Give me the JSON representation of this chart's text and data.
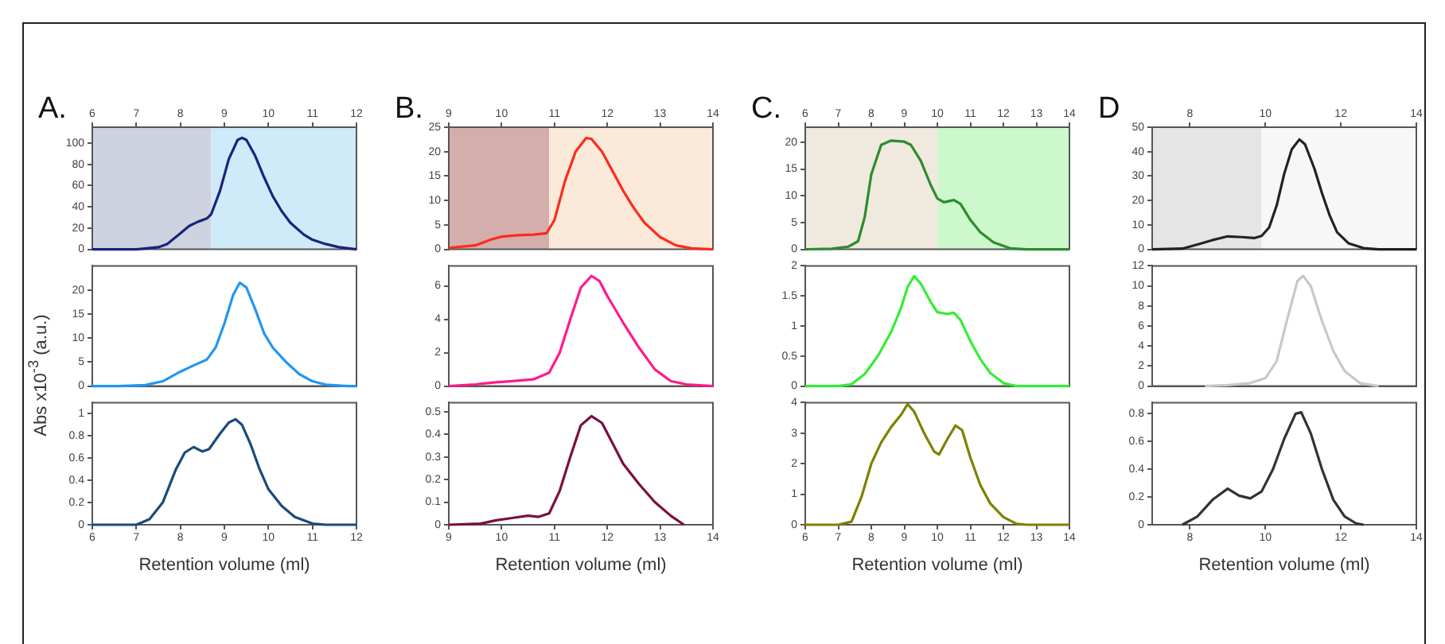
{
  "chart_data": [
    {
      "type": "line",
      "title": "A.",
      "xlim": [
        6,
        12
      ],
      "xticks": [
        6,
        7,
        8,
        9,
        10,
        11,
        12
      ],
      "ylim": [
        0,
        115
      ],
      "yticks": [
        0,
        20,
        40,
        60,
        80,
        100
      ],
      "bands": [
        {
          "axis": "x",
          "from": 6,
          "to": 8.7,
          "color": "#cdd3df"
        },
        {
          "axis": "x",
          "from": 8.7,
          "to": 12,
          "color": "#cfeaf8"
        }
      ],
      "series": [
        {
          "color": "#1a237e",
          "x": [
            6,
            7,
            7.5,
            7.7,
            8,
            8.2,
            8.4,
            8.6,
            8.7,
            8.9,
            9.1,
            9.3,
            9.4,
            9.5,
            9.7,
            9.9,
            10.1,
            10.3,
            10.5,
            10.8,
            11,
            11.3,
            11.6,
            12
          ],
          "values": [
            0,
            0,
            2,
            5,
            15,
            22,
            26,
            29,
            33,
            55,
            85,
            103,
            105,
            103,
            88,
            68,
            50,
            36,
            25,
            14,
            9,
            5,
            2,
            0
          ]
        }
      ]
    },
    {
      "type": "line",
      "ylabel": "Abs x10$^{-3}$ (a.u.)",
      "xlim": [
        6,
        12
      ],
      "ylim": [
        0,
        25
      ],
      "yticks": [
        0,
        5,
        10,
        15,
        20
      ],
      "tick_labels": "y",
      "series": [
        {
          "color": "#2196f3",
          "x": [
            6,
            6.6,
            7.2,
            7.6,
            8,
            8.3,
            8.6,
            8.8,
            9,
            9.2,
            9.35,
            9.5,
            9.7,
            9.9,
            10.1,
            10.4,
            10.7,
            11,
            11.3,
            11.8,
            12
          ],
          "values": [
            0,
            0,
            0.2,
            1,
            3,
            4.3,
            5.5,
            8,
            13,
            19,
            21.5,
            20.5,
            16,
            11,
            8,
            5,
            2.5,
            1,
            0.3,
            0,
            0
          ]
        }
      ]
    },
    {
      "type": "line",
      "xlabel": "Retention volume (ml)",
      "xlim": [
        6,
        12
      ],
      "xticks": [
        6,
        7,
        8,
        9,
        10,
        11,
        12
      ],
      "ylim": [
        0,
        1.1
      ],
      "yticks": [
        0,
        0.2,
        0.4,
        0.6,
        0.8,
        1
      ],
      "series": [
        {
          "color": "#1a4a7a",
          "x": [
            6,
            7,
            7.3,
            7.6,
            7.9,
            8.1,
            8.3,
            8.5,
            8.65,
            8.9,
            9.1,
            9.25,
            9.4,
            9.6,
            9.8,
            10,
            10.3,
            10.6,
            11,
            11.3,
            12
          ],
          "values": [
            0,
            0,
            0.05,
            0.2,
            0.5,
            0.65,
            0.7,
            0.66,
            0.68,
            0.82,
            0.92,
            0.95,
            0.9,
            0.72,
            0.5,
            0.32,
            0.17,
            0.07,
            0.01,
            0,
            0
          ]
        }
      ]
    },
    {
      "type": "line",
      "title": "B.",
      "xlim": [
        9,
        14
      ],
      "xticks": [
        9,
        10,
        11,
        12,
        13,
        14
      ],
      "ylim": [
        0,
        25
      ],
      "yticks": [
        0,
        5,
        10,
        15,
        20,
        25
      ],
      "bands": [
        {
          "axis": "x",
          "from": 9,
          "to": 10.9,
          "color": "#d4aeab"
        },
        {
          "axis": "x",
          "from": 10.9,
          "to": 14,
          "color": "#fbe9da"
        }
      ],
      "series": [
        {
          "color": "#ff2a1a",
          "x": [
            9,
            9.5,
            9.8,
            10,
            10.3,
            10.6,
            10.85,
            11,
            11.2,
            11.4,
            11.6,
            11.7,
            11.9,
            12.1,
            12.3,
            12.5,
            12.7,
            13,
            13.3,
            13.6,
            14
          ],
          "values": [
            0.3,
            0.8,
            2,
            2.6,
            2.9,
            3,
            3.3,
            6,
            14,
            20,
            22.8,
            22.6,
            20,
            16,
            12,
            8.5,
            5.5,
            2.5,
            0.8,
            0.2,
            0
          ]
        }
      ]
    },
    {
      "type": "line",
      "xlim": [
        9,
        14
      ],
      "ylim": [
        0,
        7.2
      ],
      "yticks": [
        0,
        2,
        4,
        6
      ],
      "tick_labels": "y",
      "series": [
        {
          "color": "#ff1a8c",
          "x": [
            9,
            9.5,
            9.8,
            10.2,
            10.6,
            10.9,
            11.1,
            11.3,
            11.5,
            11.7,
            11.85,
            12,
            12.3,
            12.6,
            12.9,
            13.2,
            13.5,
            14
          ],
          "values": [
            0,
            0.1,
            0.2,
            0.3,
            0.4,
            0.8,
            2,
            4,
            5.9,
            6.6,
            6.3,
            5.4,
            3.8,
            2.3,
            1,
            0.3,
            0.1,
            0
          ]
        }
      ]
    },
    {
      "type": "line",
      "xlabel": "Retention volume (ml)",
      "xlim": [
        9,
        14
      ],
      "xticks": [
        9,
        10,
        11,
        12,
        13,
        14
      ],
      "ylim": [
        0,
        0.54
      ],
      "yticks": [
        0,
        0.1,
        0.2,
        0.3,
        0.4,
        0.5
      ],
      "series": [
        {
          "color": "#7a1040",
          "x": [
            9,
            9.6,
            9.9,
            10.2,
            10.5,
            10.7,
            10.9,
            11.1,
            11.3,
            11.5,
            11.7,
            11.9,
            12.1,
            12.3,
            12.6,
            12.9,
            13.2,
            13.45
          ],
          "values": [
            0,
            0.005,
            0.02,
            0.03,
            0.04,
            0.035,
            0.05,
            0.15,
            0.3,
            0.44,
            0.48,
            0.45,
            0.36,
            0.27,
            0.18,
            0.1,
            0.04,
            0
          ]
        }
      ]
    },
    {
      "type": "line",
      "title": "C.",
      "xlim": [
        6,
        14
      ],
      "xticks": [
        6,
        7,
        8,
        9,
        10,
        11,
        12,
        13,
        14
      ],
      "ylim": [
        0,
        22.8
      ],
      "yticks": [
        0,
        5,
        10,
        15,
        20
      ],
      "bands": [
        {
          "axis": "x",
          "from": 6,
          "to": 10,
          "color": "#efe9de"
        },
        {
          "axis": "x",
          "from": 10,
          "to": 14,
          "color": "#ccf8cc"
        }
      ],
      "series": [
        {
          "color": "#2e8b2e",
          "x": [
            6,
            6.8,
            7.3,
            7.6,
            7.8,
            8,
            8.3,
            8.6,
            9,
            9.2,
            9.5,
            9.8,
            10,
            10.2,
            10.5,
            10.7,
            11,
            11.3,
            11.7,
            12.2,
            12.7,
            14
          ],
          "values": [
            0,
            0.1,
            0.5,
            1.5,
            6,
            14,
            19.5,
            20.3,
            20.1,
            19.5,
            16.5,
            12,
            9.5,
            8.8,
            9.2,
            8.5,
            5.5,
            3.2,
            1.3,
            0.2,
            0,
            0
          ]
        }
      ]
    },
    {
      "type": "line",
      "xlim": [
        6,
        14
      ],
      "ylim": [
        0,
        2
      ],
      "yticks": [
        0,
        0.5,
        1,
        1.5,
        2
      ],
      "tick_labels": "y",
      "series": [
        {
          "color": "#33ee33",
          "x": [
            6,
            7,
            7.4,
            7.8,
            8.2,
            8.6,
            8.9,
            9.1,
            9.3,
            9.5,
            9.8,
            10,
            10.3,
            10.5,
            10.7,
            11,
            11.3,
            11.6,
            12,
            12.4,
            14
          ],
          "values": [
            0,
            0,
            0.03,
            0.2,
            0.5,
            0.9,
            1.3,
            1.65,
            1.83,
            1.7,
            1.4,
            1.23,
            1.2,
            1.22,
            1.1,
            0.75,
            0.45,
            0.22,
            0.05,
            0,
            0
          ]
        }
      ]
    },
    {
      "type": "line",
      "xlabel": "Retention volume (ml)",
      "xlim": [
        6,
        14
      ],
      "xticks": [
        6,
        7,
        8,
        9,
        10,
        11,
        12,
        13,
        14
      ],
      "ylim": [
        0,
        4
      ],
      "yticks": [
        0,
        1,
        2,
        3,
        4
      ],
      "series": [
        {
          "color": "#808000",
          "x": [
            6,
            7,
            7.4,
            7.7,
            8,
            8.3,
            8.6,
            8.9,
            9.1,
            9.3,
            9.6,
            9.9,
            10.05,
            10.3,
            10.55,
            10.75,
            11,
            11.3,
            11.6,
            12,
            12.4,
            12.7,
            14
          ],
          "values": [
            0,
            0,
            0.1,
            0.9,
            2,
            2.7,
            3.2,
            3.6,
            3.95,
            3.7,
            3,
            2.4,
            2.3,
            2.8,
            3.25,
            3.1,
            2.2,
            1.3,
            0.7,
            0.25,
            0.03,
            0,
            0
          ]
        }
      ]
    },
    {
      "type": "line",
      "title": "D",
      "xlim": [
        7,
        14
      ],
      "xticks": [
        8,
        10,
        12,
        14
      ],
      "ylim": [
        0,
        50
      ],
      "yticks": [
        0,
        10,
        20,
        30,
        40,
        50
      ],
      "bands": [
        {
          "axis": "x",
          "from": 7,
          "to": 9.9,
          "color": "#e5e5e5"
        },
        {
          "axis": "x",
          "from": 9.9,
          "to": 14,
          "color": "#f7f7f7"
        }
      ],
      "series": [
        {
          "color": "#222222",
          "x": [
            7,
            7.8,
            8.2,
            8.6,
            9,
            9.4,
            9.7,
            9.9,
            10.1,
            10.3,
            10.5,
            10.7,
            10.9,
            11.05,
            11.3,
            11.5,
            11.7,
            11.9,
            12.2,
            12.6,
            13,
            14
          ],
          "values": [
            0,
            0.3,
            2,
            3.8,
            5.3,
            5,
            4.6,
            5.5,
            9,
            18,
            31,
            41,
            45,
            43,
            33,
            23,
            14,
            7,
            2.5,
            0.5,
            0,
            0
          ]
        }
      ]
    },
    {
      "type": "line",
      "xlim": [
        7,
        14
      ],
      "ylim": [
        0,
        12
      ],
      "yticks": [
        0,
        2,
        4,
        6,
        8,
        10,
        12
      ],
      "tick_labels": "y",
      "series": [
        {
          "color": "#c8c8c8",
          "x": [
            8.4,
            9,
            9.6,
            10,
            10.3,
            10.6,
            10.85,
            11,
            11.2,
            11.5,
            11.8,
            12.1,
            12.5,
            13
          ],
          "values": [
            0,
            0.1,
            0.3,
            0.8,
            2.5,
            7,
            10.5,
            11,
            10,
            6.5,
            3.5,
            1.5,
            0.3,
            0
          ]
        }
      ]
    },
    {
      "type": "line",
      "xlabel": "Retention volume (ml)",
      "xlim": [
        7,
        14
      ],
      "xticks": [
        8,
        10,
        12,
        14
      ],
      "ylim": [
        0,
        0.88
      ],
      "yticks": [
        0,
        0.2,
        0.4,
        0.6,
        0.8
      ],
      "series": [
        {
          "color": "#333333",
          "x": [
            7.8,
            8.2,
            8.6,
            9,
            9.3,
            9.6,
            9.9,
            10.2,
            10.5,
            10.8,
            10.95,
            11.2,
            11.5,
            11.8,
            12.1,
            12.4,
            12.6
          ],
          "values": [
            0,
            0.06,
            0.18,
            0.26,
            0.21,
            0.19,
            0.24,
            0.4,
            0.62,
            0.8,
            0.81,
            0.66,
            0.4,
            0.18,
            0.06,
            0.01,
            0
          ]
        }
      ]
    }
  ]
}
